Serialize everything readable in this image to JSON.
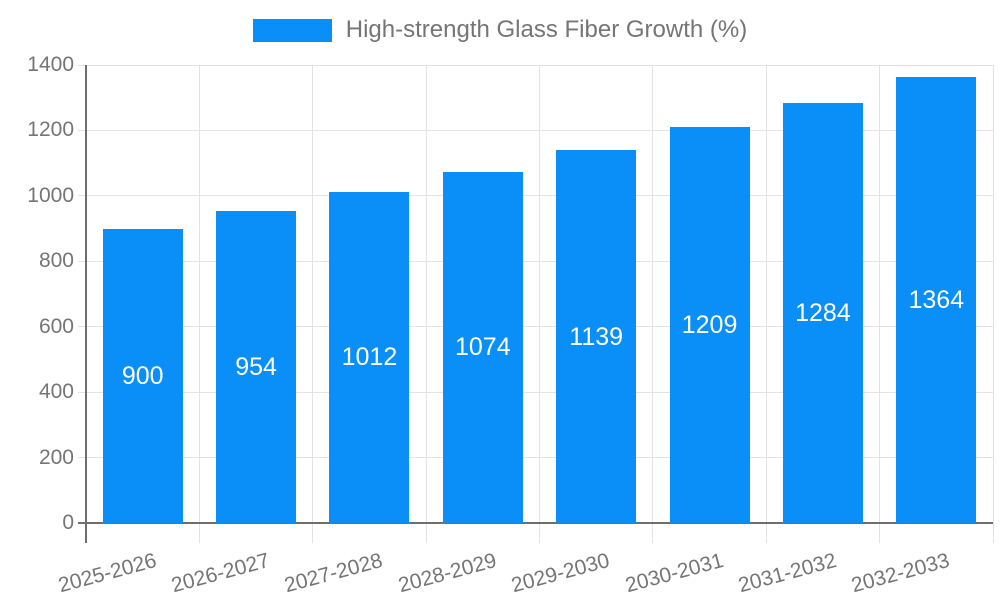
{
  "chart_data": {
    "type": "bar",
    "title": "",
    "categories": [
      "2025-2026",
      "2026-2027",
      "2027-2028",
      "2028-2029",
      "2029-2030",
      "2030-2031",
      "2031-2032",
      "2032-2033"
    ],
    "series": [
      {
        "name": "High-strength Glass Fiber Growth (%)",
        "values": [
          900,
          954,
          1012,
          1074,
          1139,
          1209,
          1284,
          1364
        ],
        "color": "#0a8ff8"
      }
    ],
    "xlabel": "",
    "ylabel": "",
    "ylim": [
      0,
      1400
    ],
    "yticks": [
      0,
      200,
      400,
      600,
      800,
      1000,
      1200,
      1400
    ],
    "legend_position": "top-center",
    "grid": true,
    "value_labels": "inside-center",
    "value_label_color": "#ffffff",
    "axis_text_color": "#757575",
    "gridline_color": "#e3e3e3",
    "axis_line_color": "#6e6e6e",
    "background": "#ffffff"
  }
}
